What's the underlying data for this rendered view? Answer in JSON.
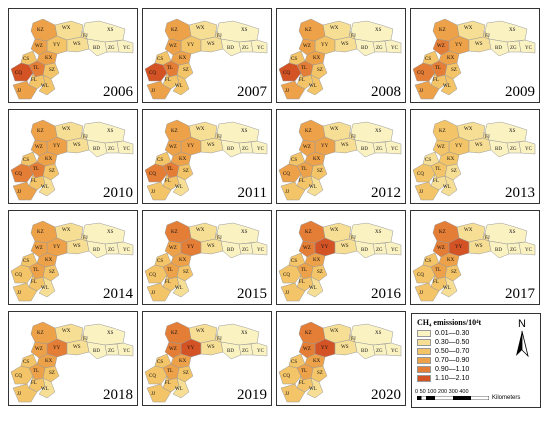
{
  "legend": {
    "title": "CH₄ emissions/10⁴t",
    "classes": [
      {
        "label": "0.01—0.30",
        "color": "#fbf2c2"
      },
      {
        "label": "0.30—0.50",
        "color": "#f7de95"
      },
      {
        "label": "0.50—0.70",
        "color": "#f3c468"
      },
      {
        "label": "0.70—0.90",
        "color": "#eda24a"
      },
      {
        "label": "0.90—1.10",
        "color": "#e47d35"
      },
      {
        "label": "1.10—2.10",
        "color": "#d45325"
      }
    ],
    "north_label": "N",
    "scale_ticks": "0  50 100    200    300    400",
    "scale_unit": "Kilometers"
  },
  "county_labels": [
    "WX",
    "XS",
    "KZ",
    "YY",
    "WS",
    "FJ",
    "BD",
    "ZG",
    "YC",
    "WZ",
    "CS",
    "KX",
    "SZ",
    "CQ",
    "TL",
    "FL",
    "WL",
    "JJ"
  ],
  "years": [
    {
      "year": "2006",
      "classes": {
        "WX": 1,
        "XS": 0,
        "KZ": 3,
        "YY": 2,
        "WS": 1,
        "FJ": 1,
        "BD": 0,
        "ZG": 0,
        "YC": 0,
        "WZ": 3,
        "CS": 2,
        "KX": 3,
        "SZ": 2,
        "CQ": 5,
        "TL": 4,
        "FL": 2,
        "WL": 2,
        "JJ": 3
      }
    },
    {
      "year": "2007",
      "classes": {
        "WX": 1,
        "XS": 0,
        "KZ": 3,
        "YY": 2,
        "WS": 1,
        "FJ": 1,
        "BD": 0,
        "ZG": 0,
        "YC": 0,
        "WZ": 3,
        "CS": 2,
        "KX": 3,
        "SZ": 2,
        "CQ": 5,
        "TL": 4,
        "FL": 2,
        "WL": 2,
        "JJ": 3
      }
    },
    {
      "year": "2008",
      "classes": {
        "WX": 1,
        "XS": 0,
        "KZ": 3,
        "YY": 2,
        "WS": 1,
        "FJ": 1,
        "BD": 0,
        "ZG": 0,
        "YC": 0,
        "WZ": 3,
        "CS": 2,
        "KX": 3,
        "SZ": 2,
        "CQ": 5,
        "TL": 4,
        "FL": 2,
        "WL": 2,
        "JJ": 3
      }
    },
    {
      "year": "2009",
      "classes": {
        "WX": 1,
        "XS": 0,
        "KZ": 3,
        "YY": 3,
        "WS": 1,
        "FJ": 1,
        "BD": 0,
        "ZG": 0,
        "YC": 0,
        "WZ": 4,
        "CS": 2,
        "KX": 3,
        "SZ": 2,
        "CQ": 4,
        "TL": 4,
        "FL": 2,
        "WL": 2,
        "JJ": 3
      }
    },
    {
      "year": "2010",
      "classes": {
        "WX": 1,
        "XS": 0,
        "KZ": 3,
        "YY": 3,
        "WS": 1,
        "FJ": 1,
        "BD": 0,
        "ZG": 0,
        "YC": 0,
        "WZ": 3,
        "CS": 2,
        "KX": 3,
        "SZ": 2,
        "CQ": 4,
        "TL": 4,
        "FL": 2,
        "WL": 1,
        "JJ": 3
      }
    },
    {
      "year": "2011",
      "classes": {
        "WX": 1,
        "XS": 0,
        "KZ": 3,
        "YY": 3,
        "WS": 1,
        "FJ": 1,
        "BD": 0,
        "ZG": 0,
        "YC": 0,
        "WZ": 3,
        "CS": 2,
        "KX": 3,
        "SZ": 2,
        "CQ": 4,
        "TL": 4,
        "FL": 2,
        "WL": 1,
        "JJ": 2
      }
    },
    {
      "year": "2012",
      "classes": {
        "WX": 1,
        "XS": 0,
        "KZ": 3,
        "YY": 3,
        "WS": 1,
        "FJ": 1,
        "BD": 0,
        "ZG": 0,
        "YC": 0,
        "WZ": 3,
        "CS": 2,
        "KX": 3,
        "SZ": 2,
        "CQ": 3,
        "TL": 3,
        "FL": 2,
        "WL": 1,
        "JJ": 2
      }
    },
    {
      "year": "2013",
      "classes": {
        "WX": 1,
        "XS": 0,
        "KZ": 2,
        "YY": 2,
        "WS": 1,
        "FJ": 1,
        "BD": 0,
        "ZG": 0,
        "YC": 0,
        "WZ": 2,
        "CS": 1,
        "KX": 2,
        "SZ": 1,
        "CQ": 2,
        "TL": 2,
        "FL": 1,
        "WL": 1,
        "JJ": 2
      }
    },
    {
      "year": "2014",
      "classes": {
        "WX": 1,
        "XS": 0,
        "KZ": 3,
        "YY": 3,
        "WS": 1,
        "FJ": 1,
        "BD": 0,
        "ZG": 0,
        "YC": 0,
        "WZ": 3,
        "CS": 2,
        "KX": 3,
        "SZ": 2,
        "CQ": 2,
        "TL": 3,
        "FL": 2,
        "WL": 1,
        "JJ": 2
      }
    },
    {
      "year": "2015",
      "classes": {
        "WX": 1,
        "XS": 0,
        "KZ": 4,
        "YY": 4,
        "WS": 1,
        "FJ": 1,
        "BD": 0,
        "ZG": 0,
        "YC": 0,
        "WZ": 3,
        "CS": 2,
        "KX": 3,
        "SZ": 2,
        "CQ": 2,
        "TL": 3,
        "FL": 2,
        "WL": 1,
        "JJ": 2
      }
    },
    {
      "year": "2016",
      "classes": {
        "WX": 1,
        "XS": 0,
        "KZ": 4,
        "YY": 5,
        "WS": 1,
        "FJ": 1,
        "BD": 0,
        "ZG": 0,
        "YC": 0,
        "WZ": 4,
        "CS": 2,
        "KX": 3,
        "SZ": 2,
        "CQ": 2,
        "TL": 3,
        "FL": 2,
        "WL": 1,
        "JJ": 2
      }
    },
    {
      "year": "2017",
      "classes": {
        "WX": 1,
        "XS": 0,
        "KZ": 4,
        "YY": 5,
        "WS": 1,
        "FJ": 1,
        "BD": 0,
        "ZG": 0,
        "YC": 0,
        "WZ": 4,
        "CS": 2,
        "KX": 3,
        "SZ": 2,
        "CQ": 2,
        "TL": 3,
        "FL": 2,
        "WL": 1,
        "JJ": 2
      }
    },
    {
      "year": "2018",
      "classes": {
        "WX": 1,
        "XS": 0,
        "KZ": 3,
        "YY": 4,
        "WS": 1,
        "FJ": 1,
        "BD": 0,
        "ZG": 0,
        "YC": 0,
        "WZ": 3,
        "CS": 2,
        "KX": 3,
        "SZ": 2,
        "CQ": 2,
        "TL": 3,
        "FL": 2,
        "WL": 1,
        "JJ": 2
      }
    },
    {
      "year": "2019",
      "classes": {
        "WX": 1,
        "XS": 0,
        "KZ": 4,
        "YY": 5,
        "WS": 1,
        "FJ": 1,
        "BD": 0,
        "ZG": 0,
        "YC": 0,
        "WZ": 4,
        "CS": 2,
        "KX": 3,
        "SZ": 2,
        "CQ": 2,
        "TL": 3,
        "FL": 2,
        "WL": 1,
        "JJ": 2
      }
    },
    {
      "year": "2020",
      "classes": {
        "WX": 1,
        "XS": 0,
        "KZ": 4,
        "YY": 5,
        "WS": 1,
        "FJ": 1,
        "BD": 0,
        "ZG": 0,
        "YC": 0,
        "WZ": 4,
        "CS": 2,
        "KX": 3,
        "SZ": 2,
        "CQ": 2,
        "TL": 3,
        "FL": 2,
        "WL": 1,
        "JJ": 2
      }
    }
  ]
}
